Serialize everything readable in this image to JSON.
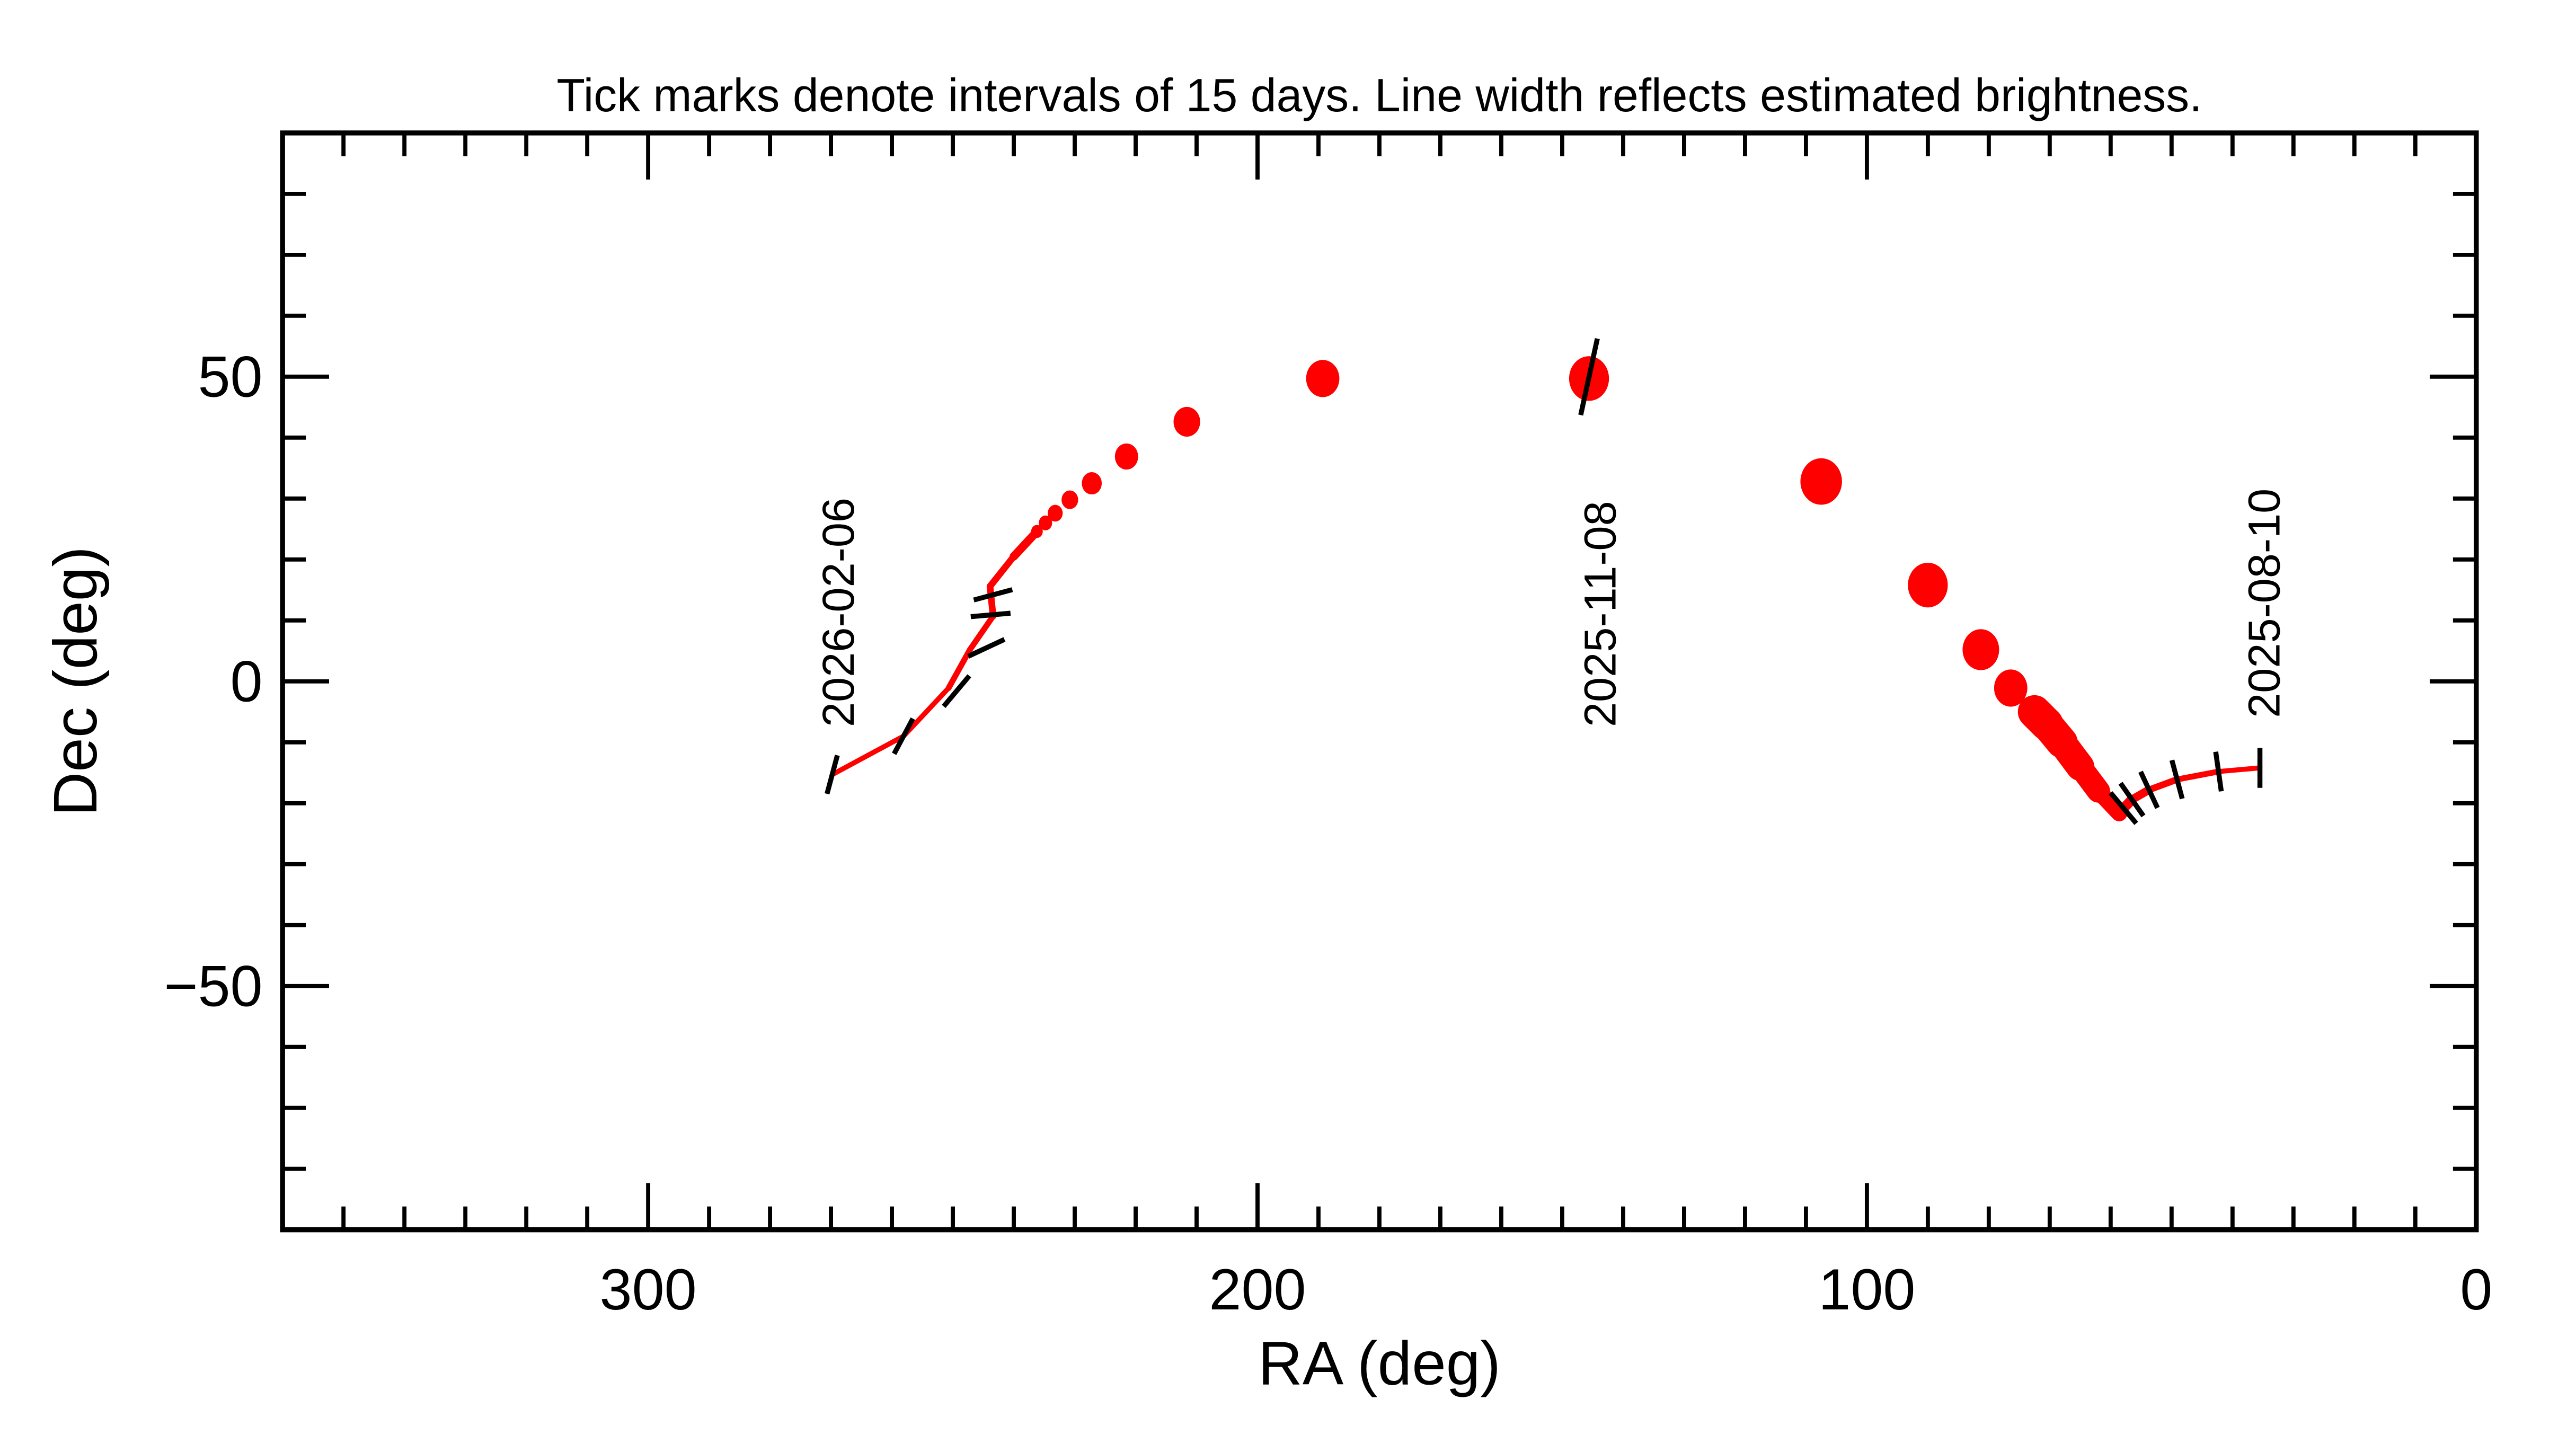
{
  "chart_data": {
    "type": "line",
    "title": "Tick marks denote intervals of 15 days.  Line width reflects estimated brightness.",
    "xlabel": "RA (deg)",
    "ylabel": "Dec (deg)",
    "xlim": [
      360,
      0
    ],
    "ylim": [
      -90,
      90
    ],
    "x_ticks": [
      300,
      200,
      100,
      0
    ],
    "y_ticks": [
      -50,
      0,
      50
    ],
    "y_tick_labels": [
      "−50",
      "0",
      "50"
    ],
    "minor_tick_step": 10,
    "color": "#ff0000",
    "track": [
      {
        "ra": 35.5,
        "dec": -14.2,
        "w": 3
      },
      {
        "ra": 42.3,
        "dec": -14.8,
        "w": 3
      },
      {
        "ra": 49.1,
        "dec": -16.1,
        "w": 3.5
      },
      {
        "ra": 53.7,
        "dec": -17.8,
        "w": 4
      },
      {
        "ra": 56.5,
        "dec": -19.4,
        "w": 5
      },
      {
        "ra": 58.6,
        "dec": -21.6,
        "w": 6
      },
      {
        "ra": 62.0,
        "dec": -18.0,
        "w": 10
      },
      {
        "ra": 65.0,
        "dec": -14.0,
        "w": 14
      },
      {
        "ra": 68.0,
        "dec": -10.0,
        "w": 17
      },
      {
        "ra": 70.5,
        "dec": -7.0,
        "w": 19
      },
      {
        "ra": 72.5,
        "dec": -5.0,
        "w": 20
      }
    ],
    "markers": [
      {
        "ra": 76.4,
        "dec": -1.1,
        "size": 10
      },
      {
        "ra": 81.3,
        "dec": 5.2,
        "size": 11
      },
      {
        "ra": 90.0,
        "dec": 15.8,
        "size": 12
      },
      {
        "ra": 107.5,
        "dec": 32.8,
        "size": 12.5
      },
      {
        "ra": 145.6,
        "dec": 49.7,
        "size": 12
      },
      {
        "ra": 189.3,
        "dec": 49.7,
        "size": 10
      },
      {
        "ra": 211.6,
        "dec": 42.6,
        "size": 8
      },
      {
        "ra": 221.5,
        "dec": 36.9,
        "size": 7
      },
      {
        "ra": 227.2,
        "dec": 32.5,
        "size": 6
      },
      {
        "ra": 230.8,
        "dec": 29.8,
        "size": 5
      },
      {
        "ra": 233.2,
        "dec": 27.6,
        "size": 4.5
      },
      {
        "ra": 234.8,
        "dec": 26.0,
        "size": 4
      },
      {
        "ra": 236.2,
        "dec": 24.6,
        "size": 3.5
      }
    ],
    "track2": [
      {
        "ra": 236.2,
        "dec": 24.6,
        "w": 5
      },
      {
        "ra": 240.0,
        "dec": 20.5,
        "w": 4
      },
      {
        "ra": 243.9,
        "dec": 15.6,
        "w": 4
      },
      {
        "ra": 243.4,
        "dec": 10.7,
        "w": 3.5
      },
      {
        "ra": 247.2,
        "dec": 5.2,
        "w": 3.5
      },
      {
        "ra": 250.7,
        "dec": -1.1,
        "w": 3
      },
      {
        "ra": 258.1,
        "dec": -9.0,
        "w": 3
      },
      {
        "ra": 269.8,
        "dec": -15.3,
        "w": 3
      }
    ],
    "interval_ticks": [
      {
        "ra": 35.5,
        "dec": -14.2,
        "angle": 0
      },
      {
        "ra": 42.3,
        "dec": -14.8,
        "angle": 8
      },
      {
        "ra": 49.1,
        "dec": -16.1,
        "angle": 15
      },
      {
        "ra": 53.7,
        "dec": -17.8,
        "angle": 25
      },
      {
        "ra": 56.5,
        "dec": -19.4,
        "angle": 35
      },
      {
        "ra": 57.9,
        "dec": -20.8,
        "angle": 40
      },
      {
        "ra": 269.8,
        "dec": -15.3,
        "angle": -15
      },
      {
        "ra": 258.1,
        "dec": -9.0,
        "angle": -28
      },
      {
        "ra": 249.4,
        "dec": -1.6,
        "angle": -40
      },
      {
        "ra": 244.5,
        "dec": 5.5,
        "angle": -65
      },
      {
        "ra": 243.8,
        "dec": 10.9,
        "angle": -85
      },
      {
        "ra": 243.4,
        "dec": 14.2,
        "angle": -75
      }
    ],
    "annotations": [
      {
        "text": "2026-02-06",
        "ra": 269.0,
        "dec": -7.5
      },
      {
        "text": "2025-11-08",
        "ra": 144.0,
        "dec": -7.5
      },
      {
        "text": "2025-08-10",
        "ra": 35.0,
        "dec": -6.0
      }
    ],
    "highlight_tick": {
      "ra": 145.6,
      "dec": 49.7
    }
  }
}
